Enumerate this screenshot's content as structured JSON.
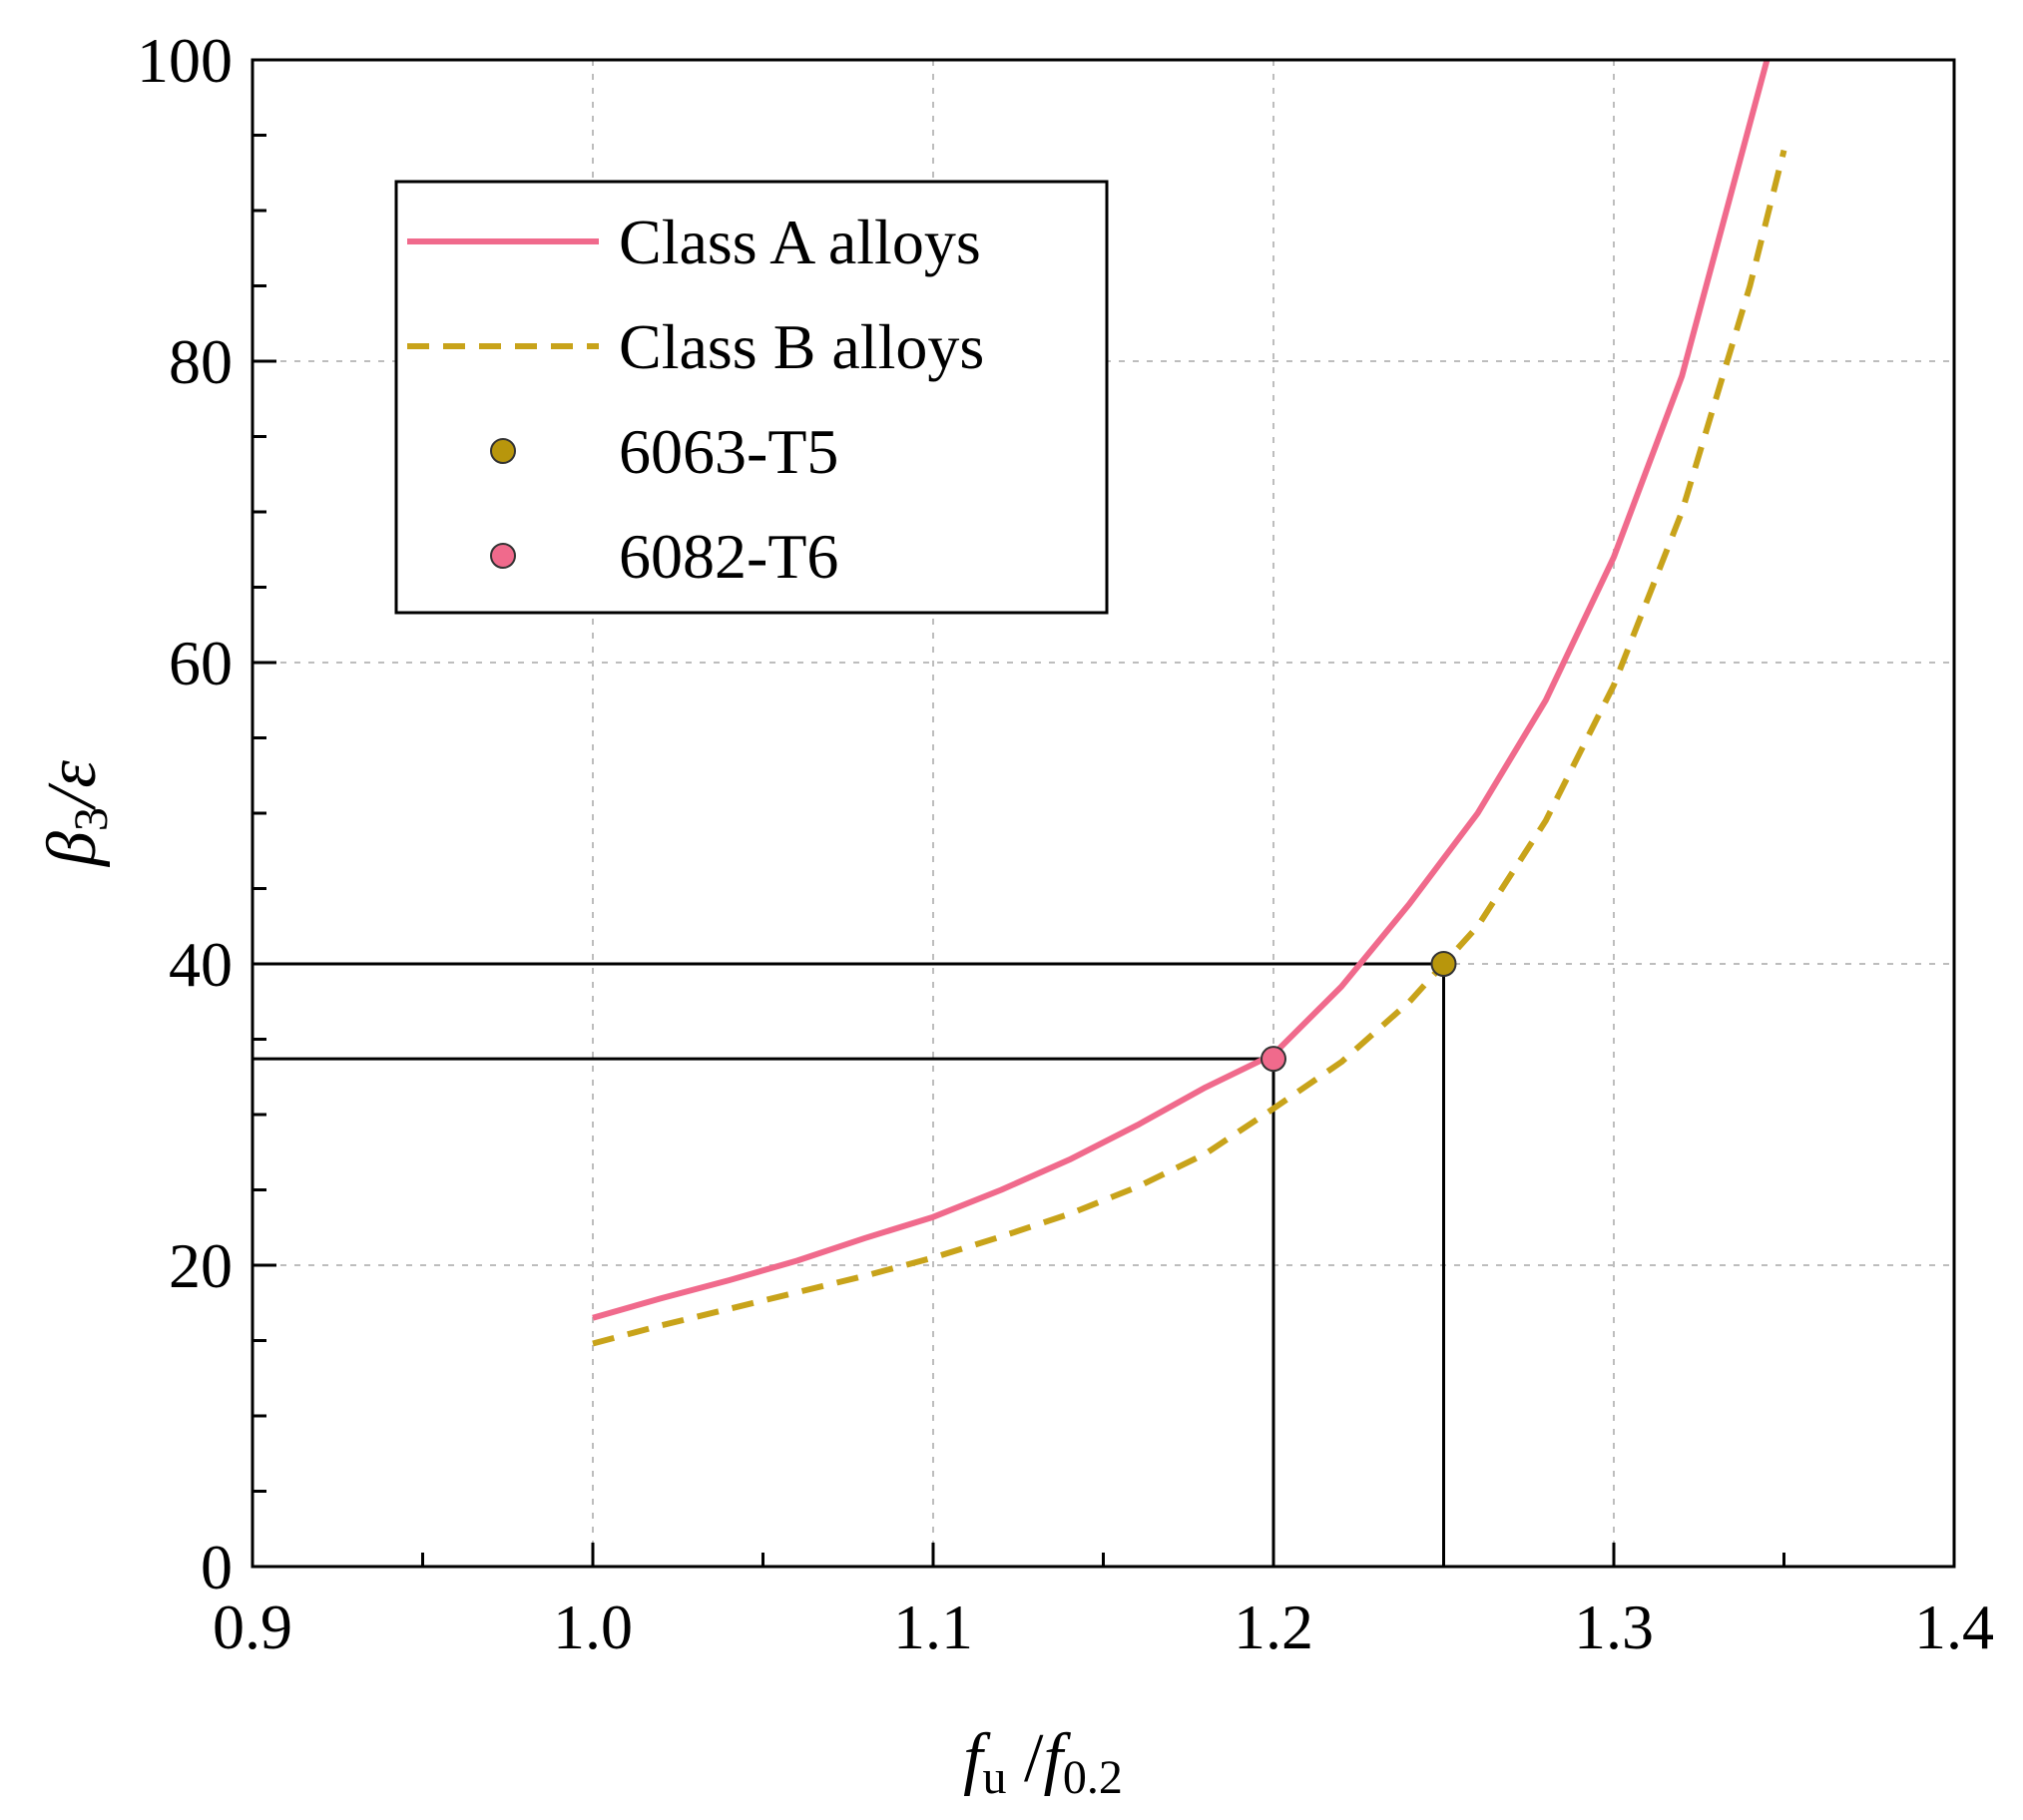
{
  "chart_data": {
    "type": "line",
    "xlabel": {
      "main": "f",
      "sub": "u",
      "mid": " /",
      "main2": "f",
      "sub2": "0.2"
    },
    "ylabel": {
      "main": "β",
      "sub": "3",
      "tail": "/ε"
    },
    "xlim": [
      0.9,
      1.4
    ],
    "ylim": [
      0,
      100
    ],
    "x_ticks": [
      0.9,
      1.0,
      1.1,
      1.2,
      1.3,
      1.4
    ],
    "x_tick_labels": [
      "0.9",
      "1.0",
      "1.1",
      "1.2",
      "1.3",
      "1.4"
    ],
    "y_ticks": [
      0,
      20,
      40,
      60,
      80,
      100
    ],
    "y_tick_labels": [
      "0",
      "20",
      "40",
      "60",
      "80",
      "100"
    ],
    "grid": true,
    "legend_position": "upper-left",
    "series": [
      {
        "name": "Class A alloys",
        "style": "solid",
        "color": "#F06A8C",
        "x": [
          1.0,
          1.02,
          1.04,
          1.06,
          1.08,
          1.1,
          1.12,
          1.14,
          1.16,
          1.18,
          1.2,
          1.22,
          1.24,
          1.26,
          1.28,
          1.3,
          1.32,
          1.345
        ],
        "y": [
          16.5,
          17.8,
          19.0,
          20.3,
          21.8,
          23.2,
          25.0,
          27.0,
          29.3,
          31.8,
          34.0,
          38.5,
          44.0,
          50.0,
          57.5,
          67.0,
          79.0,
          100.0
        ]
      },
      {
        "name": "Class B alloys",
        "style": "dashed",
        "color": "#C8A31A",
        "x": [
          1.0,
          1.02,
          1.04,
          1.06,
          1.08,
          1.1,
          1.12,
          1.14,
          1.16,
          1.18,
          1.2,
          1.22,
          1.24,
          1.25,
          1.26,
          1.28,
          1.3,
          1.32,
          1.34,
          1.35
        ],
        "y": [
          14.8,
          16.0,
          17.1,
          18.2,
          19.3,
          20.5,
          21.9,
          23.4,
          25.2,
          27.4,
          30.4,
          33.5,
          37.5,
          40.0,
          42.5,
          49.5,
          58.5,
          70.0,
          85.0,
          94.0
        ]
      }
    ],
    "points": [
      {
        "name": "6063-T5",
        "x": 1.25,
        "y": 40.0,
        "fill": "#B8960C",
        "stroke": "#333333"
      },
      {
        "name": "6082-T6",
        "x": 1.2,
        "y": 33.7,
        "fill": "#F06A8C",
        "stroke": "#333333"
      }
    ],
    "reference_lines": [
      {
        "x": 1.25,
        "y": 40.0
      },
      {
        "x": 1.2,
        "y": 33.7
      }
    ]
  }
}
